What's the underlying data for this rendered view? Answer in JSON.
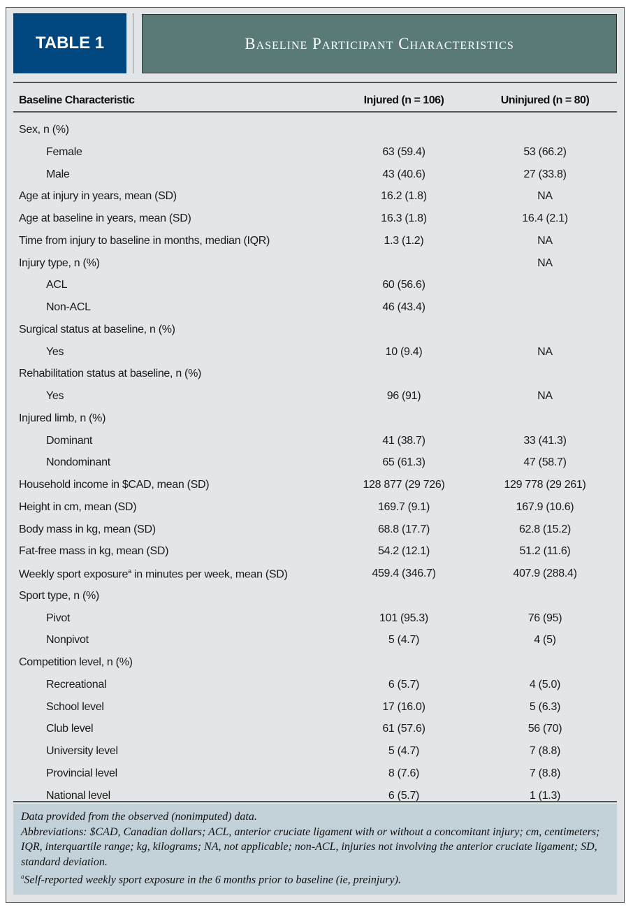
{
  "tag": "TABLE 1",
  "title": "Baseline Participant Characteristics",
  "headers": {
    "characteristic": "Baseline Characteristic",
    "injured": "Injured (n = 106)",
    "uninjured": "Uninjured (n = 80)"
  },
  "rows": [
    {
      "label": "Sex, n (%)",
      "indent": false,
      "injured": "",
      "uninjured": ""
    },
    {
      "label": "Female",
      "indent": true,
      "injured": "63 (59.4)",
      "uninjured": "53 (66.2)"
    },
    {
      "label": "Male",
      "indent": true,
      "injured": "43 (40.6)",
      "uninjured": "27 (33.8)"
    },
    {
      "label": "Age at injury in years, mean (SD)",
      "indent": false,
      "injured": "16.2 (1.8)",
      "uninjured": "NA"
    },
    {
      "label": "Age at baseline in years, mean (SD)",
      "indent": false,
      "injured": "16.3 (1.8)",
      "uninjured": "16.4 (2.1)"
    },
    {
      "label": "Time from injury to baseline in months, median (IQR)",
      "indent": false,
      "injured": "1.3 (1.2)",
      "uninjured": "NA"
    },
    {
      "label": "Injury type, n (%)",
      "indent": false,
      "injured": "",
      "uninjured": "NA"
    },
    {
      "label": "ACL",
      "indent": true,
      "injured": "60 (56.6)",
      "uninjured": ""
    },
    {
      "label": "Non-ACL",
      "indent": true,
      "injured": "46 (43.4)",
      "uninjured": ""
    },
    {
      "label": "Surgical status at baseline, n (%)",
      "indent": false,
      "injured": "",
      "uninjured": ""
    },
    {
      "label": "Yes",
      "indent": true,
      "injured": "10 (9.4)",
      "uninjured": "NA"
    },
    {
      "label": "Rehabilitation status at baseline, n (%)",
      "indent": false,
      "injured": "",
      "uninjured": ""
    },
    {
      "label": "Yes",
      "indent": true,
      "injured": "96 (91)",
      "uninjured": "NA"
    },
    {
      "label": "Injured limb, n (%)",
      "indent": false,
      "injured": "",
      "uninjured": ""
    },
    {
      "label": "Dominant",
      "indent": true,
      "injured": "41 (38.7)",
      "uninjured": "33 (41.3)"
    },
    {
      "label": "Nondominant",
      "indent": true,
      "injured": "65 (61.3)",
      "uninjured": "47 (58.7)"
    },
    {
      "label": "Household income in $CAD, mean (SD)",
      "indent": false,
      "injured": "128 877 (29 726)",
      "uninjured": "129 778 (29 261)"
    },
    {
      "label": "Height in cm, mean (SD)",
      "indent": false,
      "injured": "169.7 (9.1)",
      "uninjured": "167.9 (10.6)"
    },
    {
      "label": "Body mass in kg, mean (SD)",
      "indent": false,
      "injured": "68.8 (17.7)",
      "uninjured": "62.8 (15.2)"
    },
    {
      "label": "Fat-free mass in kg, mean (SD)",
      "indent": false,
      "injured": "54.2 (12.1)",
      "uninjured": "51.2 (11.6)"
    },
    {
      "label": "Weekly sport exposure",
      "sup": "a",
      "label2": " in minutes per week, mean (SD)",
      "indent": false,
      "injured": "459.4 (346.7)",
      "uninjured": "407.9 (288.4)"
    },
    {
      "label": "Sport type, n (%)",
      "indent": false,
      "injured": "",
      "uninjured": ""
    },
    {
      "label": "Pivot",
      "indent": true,
      "injured": "101 (95.3)",
      "uninjured": "76 (95)"
    },
    {
      "label": "Nonpivot",
      "indent": true,
      "injured": "5 (4.7)",
      "uninjured": "4 (5)"
    },
    {
      "label": "Competition level, n (%)",
      "indent": false,
      "injured": "",
      "uninjured": ""
    },
    {
      "label": "Recreational",
      "indent": true,
      "injured": "6 (5.7)",
      "uninjured": "4 (5.0)"
    },
    {
      "label": "School level",
      "indent": true,
      "injured": "17 (16.0)",
      "uninjured": "5 (6.3)"
    },
    {
      "label": "Club level",
      "indent": true,
      "injured": "61 (57.6)",
      "uninjured": "56 (70)"
    },
    {
      "label": "University level",
      "indent": true,
      "injured": "5 (4.7)",
      "uninjured": "7 (8.8)"
    },
    {
      "label": "Provincial level",
      "indent": true,
      "injured": "8 (7.6)",
      "uninjured": "7 (8.8)"
    },
    {
      "label": "National level",
      "indent": true,
      "injured": "6 (5.7)",
      "uninjured": "1 (1.3)"
    }
  ],
  "footnotes": {
    "note": "Data provided from the observed (nonimputed) data.",
    "abbreviations": "Abbreviations: $CAD, Canadian dollars; ACL, anterior cruciate ligament with or without a concomitant injury; cm, centimeters; IQR, interquartile range; kg, kilograms; NA, not applicable; non-ACL, injuries not involving the anterior cruciate ligament; SD, standard deviation.",
    "sup": "a",
    "footnote_a": "Self-reported weekly sport exposure in the 6 months prior to baseline (ie, preinjury)."
  },
  "colors": {
    "tag": "#00477f",
    "title": "#5a7a78",
    "background": "#e3e6e9",
    "footnote": "#c3d1d9"
  }
}
